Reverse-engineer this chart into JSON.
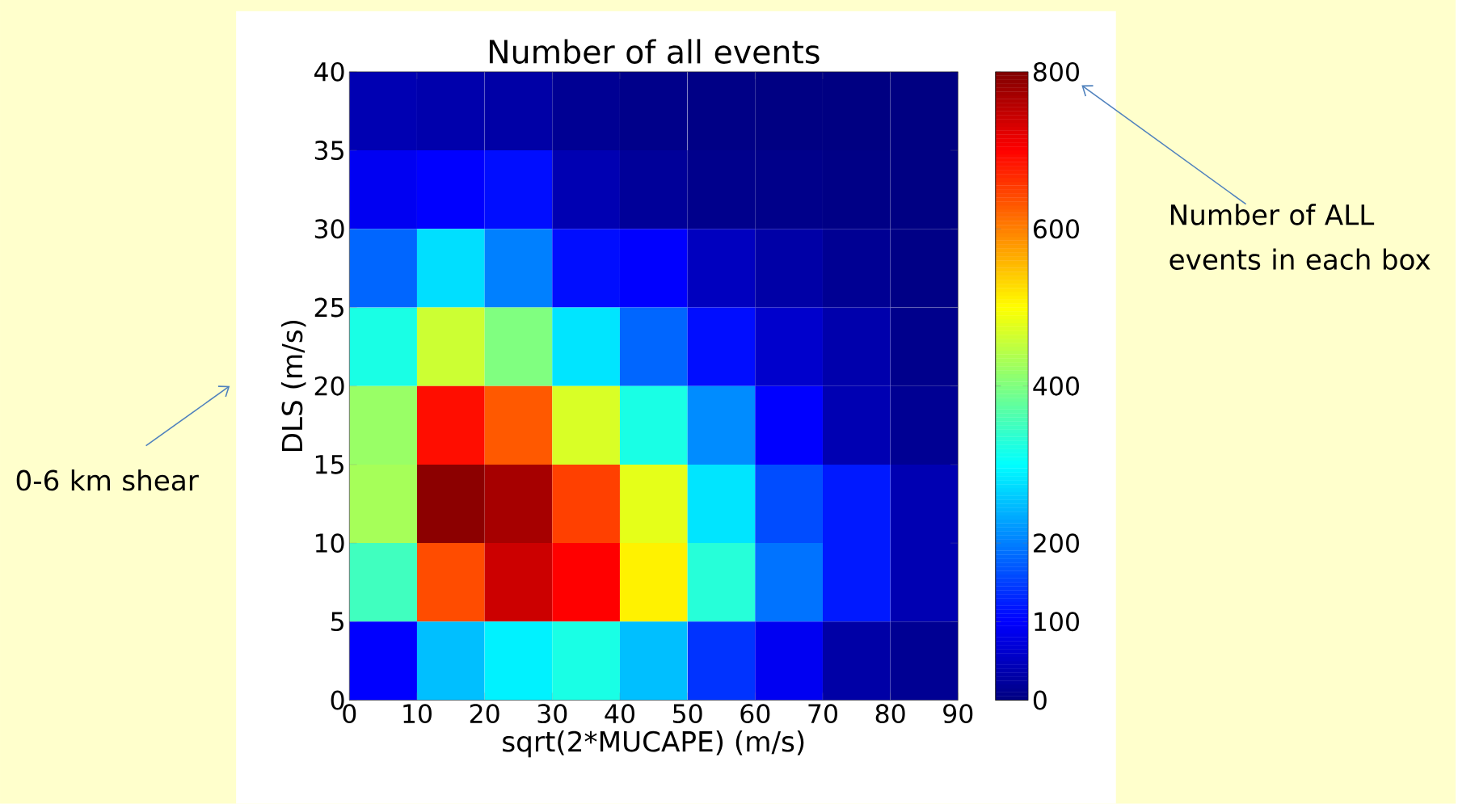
{
  "chart_data": {
    "type": "heatmap",
    "title": "Number of all events",
    "xlabel": "sqrt(2*MUCAPE) (m/s)",
    "ylabel": "DLS (m/s)",
    "annotations": [
      "Number of ALL events in each box",
      "0-6 km shear"
    ],
    "xlim": [
      0,
      90
    ],
    "xticks": [
      0,
      10,
      20,
      30,
      40,
      50,
      60,
      70,
      80,
      90
    ],
    "ylim": [
      0,
      40
    ],
    "yticks": [
      0,
      5,
      10,
      15,
      20,
      25,
      30,
      35,
      40
    ],
    "clim": [
      0,
      800
    ],
    "cticks": [
      0,
      100,
      200,
      400,
      600,
      800
    ],
    "cells": [
      [
        40,
        35,
        30,
        15,
        8,
        5,
        3,
        2,
        2
      ],
      [
        90,
        100,
        110,
        40,
        20,
        10,
        8,
        5,
        3
      ],
      [
        180,
        275,
        200,
        110,
        100,
        50,
        30,
        15,
        5
      ],
      [
        320,
        460,
        400,
        280,
        180,
        110,
        60,
        35,
        10
      ],
      [
        420,
        690,
        630,
        470,
        320,
        210,
        100,
        40,
        15
      ],
      [
        430,
        790,
        770,
        650,
        480,
        280,
        160,
        120,
        40
      ],
      [
        350,
        640,
        740,
        700,
        510,
        330,
        190,
        120,
        40
      ],
      [
        100,
        250,
        290,
        320,
        250,
        140,
        90,
        30,
        15
      ]
    ]
  }
}
